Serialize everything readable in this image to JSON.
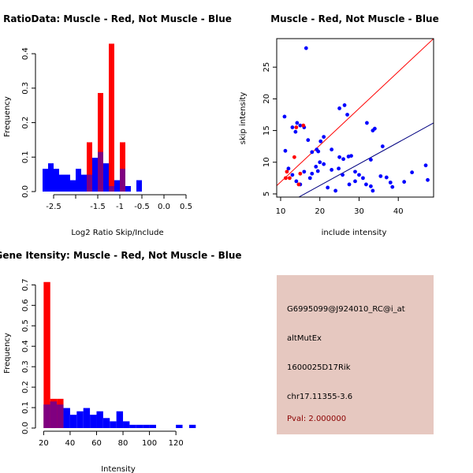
{
  "chart_data": [
    {
      "type": "histogram",
      "title": "RatioData: Muscle - Red, Not Muscle - Blue",
      "xlabel": "Log2 Ratio Skip/Include",
      "ylabel": "Frequency",
      "xlim": [
        -2.75,
        0.75
      ],
      "ylim": [
        0,
        0.43
      ],
      "xticks": [
        -2.5,
        -1.5,
        -0.5,
        0.5
      ],
      "xtick_labels": [
        "-2.5",
        "-1.5",
        "-0.5",
        "0.5"
      ],
      "xticks_minor": [
        -2.0,
        -1.0,
        0.0
      ],
      "xtick_labels_minor": [
        "",
        "-1",
        "0.0"
      ],
      "yticks": [
        0.0,
        0.1,
        0.2,
        0.3,
        0.4
      ],
      "ytick_labels": [
        "0.0",
        "0.1",
        "0.2",
        "0.3",
        "0.4"
      ],
      "bin_width": 0.125,
      "bin_start": -2.75,
      "series": [
        {
          "name": "Not Muscle",
          "color": "#0000ff",
          "values": [
            0.066,
            0.082,
            0.066,
            0.049,
            0.049,
            0.033,
            0.066,
            0.049,
            0.049,
            0.098,
            0.115,
            0.082,
            0.016,
            0.033,
            0.066,
            0.016,
            0.0,
            0.033
          ]
        },
        {
          "name": "Muscle",
          "color": "#ff0000",
          "values": [
            0,
            0,
            0,
            0,
            0,
            0,
            0,
            0,
            0.143,
            0,
            0.286,
            0,
            0.429,
            0,
            0.143,
            0,
            0,
            0
          ]
        }
      ],
      "overlap_color": "#800080"
    },
    {
      "type": "scatter",
      "title": "Muscle - Red, Not Muscle - Blue",
      "xlabel": "include intensity",
      "ylabel": "skip intensity",
      "xlim": [
        9,
        49
      ],
      "ylim": [
        4.5,
        29.5
      ],
      "xticks": [
        10,
        20,
        30,
        40
      ],
      "yticks": [
        5,
        10,
        15,
        20,
        25
      ],
      "series": [
        {
          "name": "Not Muscle",
          "color": "#0000ff",
          "points": [
            [
              16.5,
              28
            ],
            [
              11,
              17.2
            ],
            [
              13,
              15.5
            ],
            [
              14.2,
              16.2
            ],
            [
              15,
              15.8
            ],
            [
              16,
              15.5
            ],
            [
              11.2,
              11.8
            ],
            [
              13.8,
              14.8
            ],
            [
              17,
              13.5
            ],
            [
              18,
              11.6
            ],
            [
              19.2,
              12
            ],
            [
              19.6,
              11.7
            ],
            [
              20.2,
              13.3
            ],
            [
              21,
              14
            ],
            [
              23,
              12
            ],
            [
              25,
              18.5
            ],
            [
              26.3,
              19
            ],
            [
              27,
              17.5
            ],
            [
              24.8,
              9
            ],
            [
              25,
              10.8
            ],
            [
              26,
              10.5
            ],
            [
              27.3,
              10.9
            ],
            [
              28,
              11
            ],
            [
              29,
              8.5
            ],
            [
              30,
              8
            ],
            [
              31,
              7.5
            ],
            [
              32,
              16.2
            ],
            [
              33.5,
              15
            ],
            [
              33,
              10.4
            ],
            [
              34,
              15.3
            ],
            [
              35.5,
              7.8
            ],
            [
              36,
              12.5
            ],
            [
              37,
              7.6
            ],
            [
              38,
              6.8
            ],
            [
              38.5,
              6.1
            ],
            [
              41.5,
              6.9
            ],
            [
              43.5,
              8.4
            ],
            [
              47,
              9.5
            ],
            [
              47.5,
              7.2
            ],
            [
              16,
              8.5
            ],
            [
              18,
              8.2
            ],
            [
              19,
              9.3
            ],
            [
              20,
              10
            ],
            [
              22,
              6
            ],
            [
              24,
              5.5
            ],
            [
              27.5,
              6.5
            ],
            [
              29,
              7
            ],
            [
              31.8,
              6.5
            ],
            [
              33,
              6.2
            ],
            [
              33.5,
              5.5
            ],
            [
              12,
              9
            ],
            [
              13,
              8
            ],
            [
              14,
              7
            ],
            [
              15,
              6.5
            ],
            [
              17.5,
              7.5
            ],
            [
              19.5,
              8.6
            ],
            [
              21,
              9.7
            ],
            [
              23,
              8.8
            ],
            [
              25.8,
              8
            ]
          ]
        },
        {
          "name": "Muscle",
          "color": "#ff0000",
          "points": [
            [
              11.3,
              7.5
            ],
            [
              11.6,
              8.5
            ],
            [
              12.3,
              7.5
            ],
            [
              13.5,
              10.8
            ],
            [
              14,
              15.5
            ],
            [
              14.6,
              6.5
            ],
            [
              15,
              8.2
            ],
            [
              15.8,
              15.8
            ]
          ]
        }
      ],
      "lines": [
        {
          "name": "red-line",
          "color": "#ff0000",
          "points": [
            [
              9,
              6.3
            ],
            [
              49,
              29.5
            ]
          ]
        },
        {
          "name": "blue-line",
          "color": "#000080",
          "points": [
            [
              12,
              3.6
            ],
            [
              49,
              16.2
            ]
          ]
        }
      ]
    },
    {
      "type": "histogram",
      "title": "Gene Itensity: Muscle - Red, Not Muscle - Blue",
      "xlabel": "Intensity",
      "ylabel": "Frequency",
      "xlim": [
        18,
        136
      ],
      "ylim": [
        0,
        0.74
      ],
      "xticks": [
        20,
        40,
        60,
        80,
        100,
        120
      ],
      "yticks": [
        0.0,
        0.1,
        0.2,
        0.3,
        0.4,
        0.5,
        0.6,
        0.7
      ],
      "bin_width": 5,
      "bin_start": 20,
      "series": [
        {
          "name": "Not Muscle",
          "color": "#0000ff",
          "values": [
            0.115,
            0.13,
            0.115,
            0.098,
            0.065,
            0.082,
            0.098,
            0.065,
            0.082,
            0.049,
            0.033,
            0.082,
            0.033,
            0.016,
            0.016,
            0.016,
            0.016,
            0,
            0,
            0,
            0.016,
            0,
            0.016
          ]
        },
        {
          "name": "Muscle",
          "color": "#ff0000",
          "values": [
            0.714,
            0.143,
            0.143,
            0,
            0,
            0,
            0,
            0,
            0,
            0,
            0,
            0,
            0,
            0,
            0,
            0,
            0,
            0,
            0,
            0,
            0,
            0,
            0
          ]
        }
      ],
      "overlap_color": "#800080"
    }
  ],
  "info": {
    "background": "#e6c8c0",
    "probe_id": "G6995099@J924010_RC@i_at",
    "event_type": "altMutEx",
    "gene": "1600025D17Rik",
    "location": "chr17.11355-3.6",
    "pval": "Pval: 2.000000",
    "pval_color": "#8b0000"
  }
}
